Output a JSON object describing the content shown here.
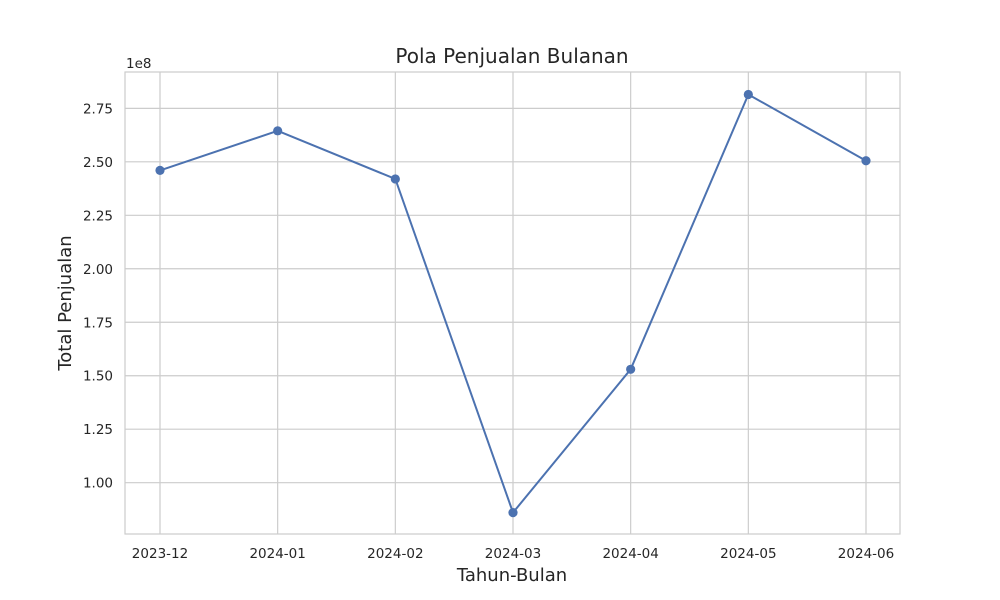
{
  "chart_data": {
    "type": "line",
    "title": "Pola Penjualan Bulanan",
    "xlabel": "Tahun-Bulan",
    "ylabel": "Total Penjualan",
    "y_offset_label": "1e8",
    "categories": [
      "2023-12",
      "2024-01",
      "2024-02",
      "2024-03",
      "2024-04",
      "2024-05",
      "2024-06"
    ],
    "series": [
      {
        "name": "Total Penjualan",
        "color": "#4c72b0",
        "values": [
          246000000,
          264500000,
          242000000,
          86000000,
          153000000,
          281500000,
          250500000
        ]
      }
    ],
    "yticks": [
      "1.00",
      "1.25",
      "1.50",
      "1.75",
      "2.00",
      "2.25",
      "2.50",
      "2.75"
    ],
    "ytick_values": [
      1.0,
      1.25,
      1.5,
      1.75,
      2.0,
      2.25,
      2.5,
      2.75
    ],
    "ylim": [
      0.76,
      2.92
    ],
    "y_scale": 100000000,
    "grid": true,
    "colors": {
      "grid": "#cccccc",
      "spine": "#cccccc",
      "line": "#4c72b0"
    }
  }
}
